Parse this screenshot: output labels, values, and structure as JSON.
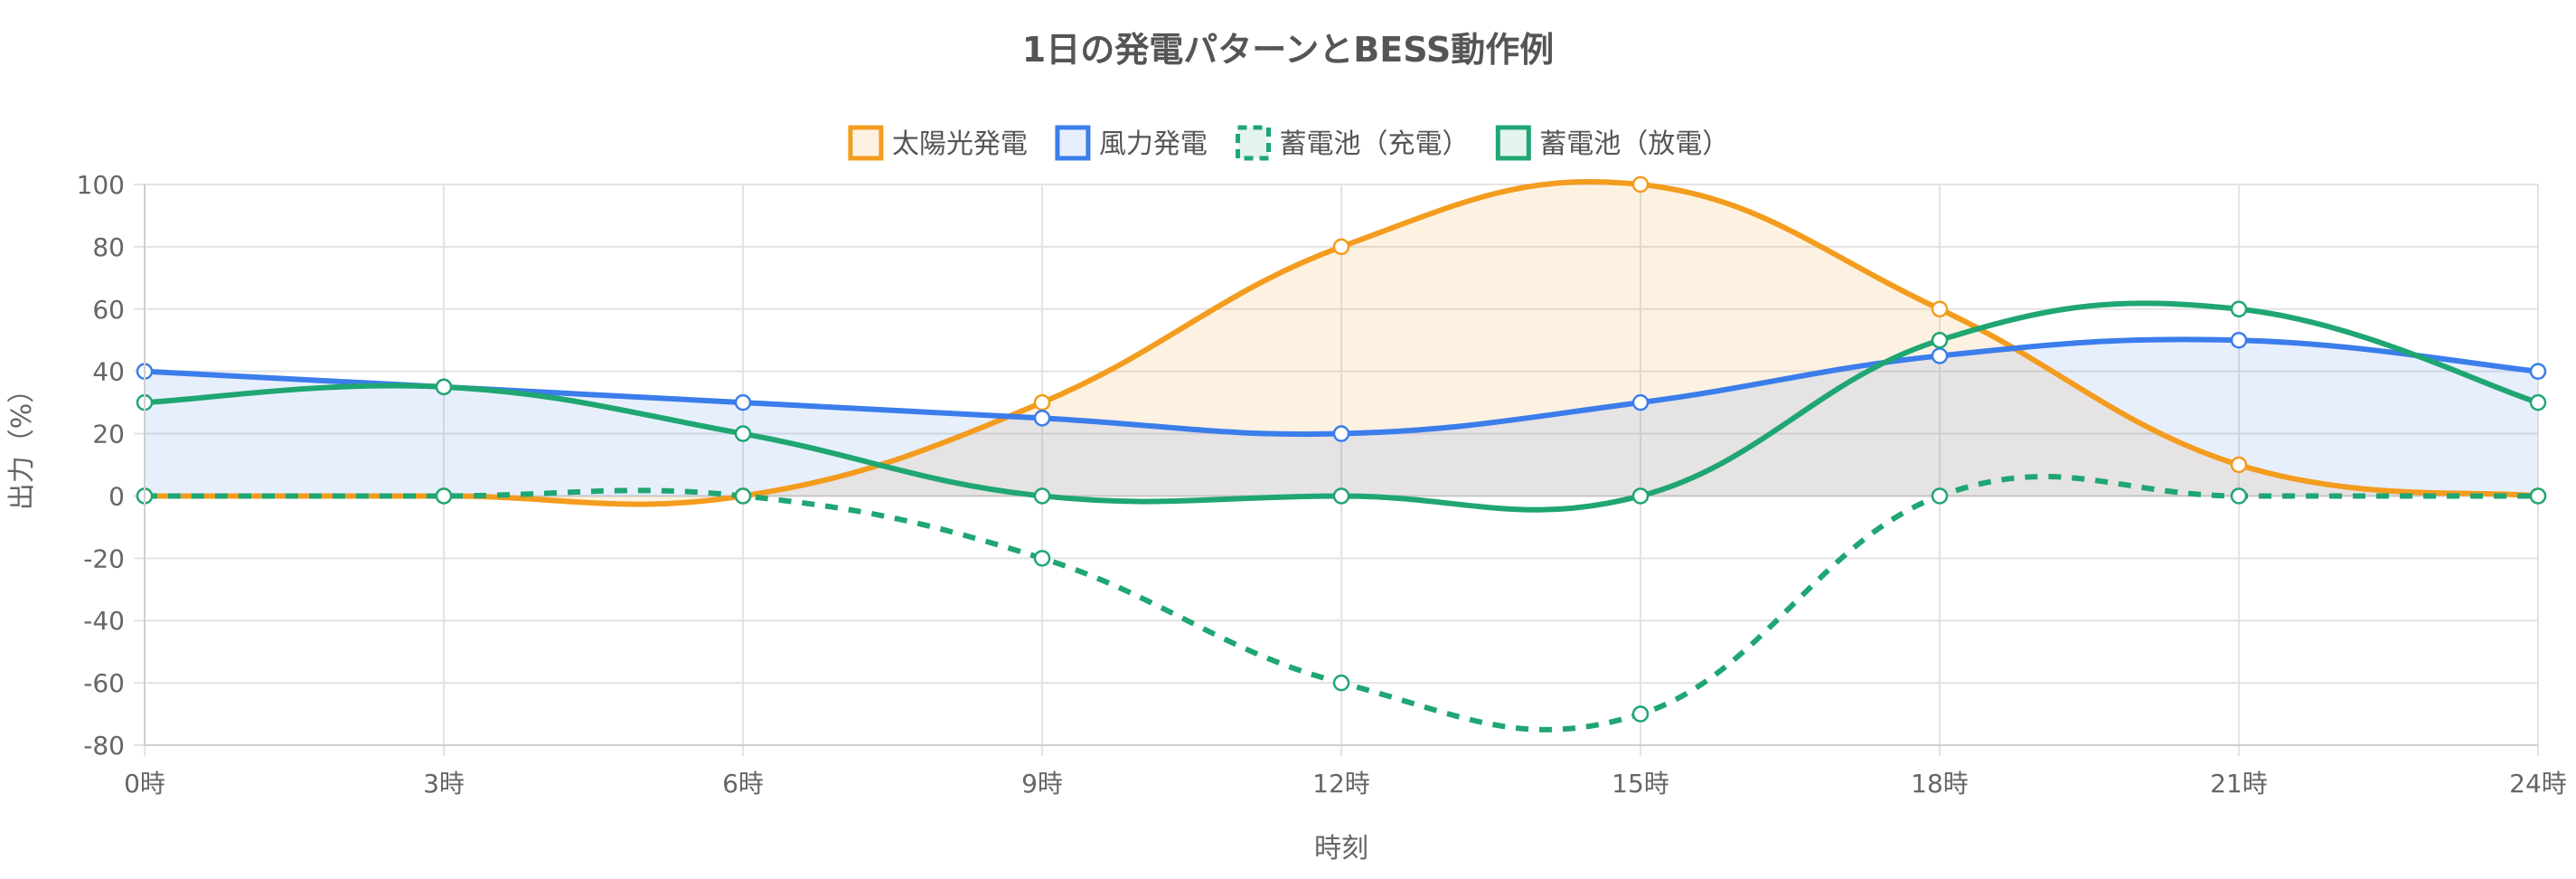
{
  "chart_data": {
    "type": "line",
    "title": "1日の発電パターンとBESS動作例",
    "xlabel": "時刻",
    "ylabel": "出力（%）",
    "ylim": [
      -80,
      100
    ],
    "yticks": [
      100,
      80,
      60,
      40,
      20,
      0,
      -20,
      -40,
      -60,
      -80
    ],
    "grid": true,
    "legend_position": "top-center",
    "categories": [
      "0時",
      "3時",
      "6時",
      "9時",
      "12時",
      "15時",
      "18時",
      "21時",
      "24時"
    ],
    "series": [
      {
        "name": "太陽光発電",
        "values": [
          0,
          0,
          0,
          30,
          80,
          100,
          60,
          10,
          0
        ],
        "color": "#F39C1E",
        "fill": "rgba(243,156,30,0.13)",
        "dashed": false,
        "filled": true
      },
      {
        "name": "風力発電",
        "values": [
          40,
          35,
          30,
          25,
          20,
          30,
          45,
          50,
          40
        ],
        "color": "#3B7DEB",
        "fill": "rgba(59,125,235,0.12)",
        "dashed": false,
        "filled": true
      },
      {
        "name": "蓄電池（充電）",
        "values": [
          0,
          0,
          0,
          -20,
          -60,
          -70,
          0,
          0,
          0
        ],
        "color": "#1FA672",
        "fill": "none",
        "dashed": true,
        "filled": false
      },
      {
        "name": "蓄電池（放電）",
        "values": [
          30,
          35,
          20,
          0,
          0,
          0,
          50,
          60,
          30
        ],
        "color": "#1FA672",
        "fill": "none",
        "dashed": false,
        "filled": false
      }
    ]
  }
}
